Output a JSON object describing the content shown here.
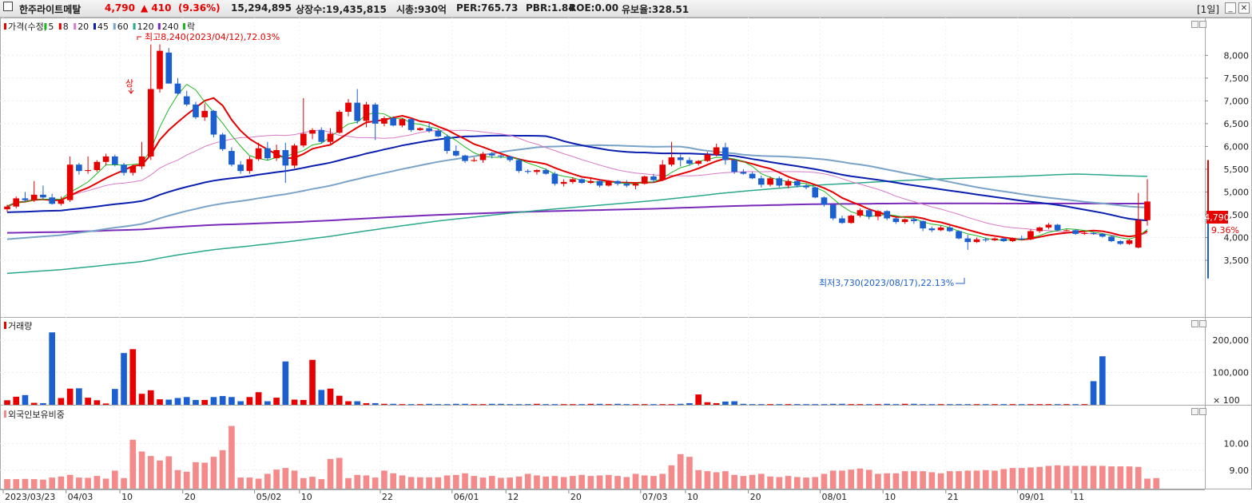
{
  "header": {
    "stock_name": "한주라이트메탈",
    "price": "4,790",
    "change": "▲ 410",
    "change_pct": "(9.36%)",
    "volume": "15,294,895",
    "listed_shares": "상장수:19,435,815",
    "market_cap": "시총:930억",
    "per": "PER:765.73",
    "pbr": "PBR:1.84",
    "roe": "ROE:0.00",
    "float_ratio": "유보율:328.51",
    "period": "[1일]"
  },
  "colors": {
    "up": "#e60000",
    "down": "#1c5fd1",
    "ma5": "#1fb71f",
    "ma8": "#e60000",
    "ma20": "#d77ac8",
    "ma45": "#0a1fb0",
    "ma60": "#7aa3c8",
    "ma120": "#2aa88c",
    "ma240": "#7a2ab8",
    "volume": "#e60000",
    "foreign": "#f58a8a"
  },
  "price_pane": {
    "legend": [
      {
        "label": "가격(수정)",
        "color": "#e60000"
      },
      {
        "label": "5",
        "color": "#1fb71f"
      },
      {
        "label": "8",
        "color": "#e60000"
      },
      {
        "label": "20",
        "color": "#d77ac8"
      },
      {
        "label": "45",
        "color": "#0a1fb0"
      },
      {
        "label": "60",
        "color": "#7aa3c8"
      },
      {
        "label": "120",
        "color": "#2aa88c"
      },
      {
        "label": "240",
        "color": "#7a2ab8"
      },
      {
        "label": "락",
        "color": "#1fb71f"
      }
    ],
    "high_annotation": "최고8,240(2023/04/12),72.03%",
    "low_annotation": "최저3,730(2023/08/17),22.13%",
    "upper_limit_marker": "상",
    "y_ticks": [
      "8,000",
      "7,500",
      "7,000",
      "6,500",
      "6,000",
      "5,500",
      "5,000",
      "4,500",
      "4,000",
      "3,500"
    ],
    "current_price_label": "4,790",
    "current_pct_label": "9.36%"
  },
  "volume_pane": {
    "title": "거래량",
    "y_ticks": [
      "200,000",
      "100,000"
    ],
    "unit": "× 100"
  },
  "foreign_pane": {
    "title": "외국인보유비중",
    "y_ticks": [
      "10.00",
      "9.00"
    ]
  },
  "x_axis": {
    "labels": [
      "2023/03/23",
      "04/03",
      "10",
      "20",
      "05/02",
      "10",
      "22",
      "06/01",
      "12",
      "20",
      "07/03",
      "10",
      "20",
      "08/01",
      "10",
      "21",
      "09/01",
      "11"
    ]
  },
  "chart_data": {
    "type": "candlestick",
    "candles": [
      [
        4620,
        4720,
        4560,
        4680
      ],
      [
        4680,
        4900,
        4640,
        4860
      ],
      [
        4860,
        5000,
        4780,
        4820
      ],
      [
        4820,
        5240,
        4780,
        4940
      ],
      [
        4940,
        5140,
        4840,
        4880
      ],
      [
        4880,
        4960,
        4720,
        4740
      ],
      [
        4740,
        4900,
        4700,
        4820
      ],
      [
        4820,
        5780,
        4780,
        5600
      ],
      [
        5600,
        5640,
        5380,
        5460
      ],
      [
        5460,
        5780,
        5400,
        5480
      ],
      [
        5480,
        5700,
        5440,
        5660
      ],
      [
        5660,
        5840,
        5580,
        5780
      ],
      [
        5780,
        5820,
        5560,
        5600
      ],
      [
        5600,
        5640,
        5360,
        5420
      ],
      [
        5420,
        5600,
        5360,
        5560
      ],
      [
        5560,
        6100,
        5500,
        5780
      ],
      [
        5780,
        8240,
        5700,
        7260
      ],
      [
        7260,
        8240,
        7180,
        8100
      ],
      [
        8060,
        8160,
        7400,
        7380
      ],
      [
        7380,
        7500,
        7140,
        7160
      ],
      [
        7100,
        7220,
        6880,
        6920
      ],
      [
        6920,
        6980,
        6600,
        6640
      ],
      [
        6640,
        6940,
        6560,
        6780
      ],
      [
        6780,
        6800,
        6200,
        6260
      ],
      [
        6260,
        6300,
        5900,
        5940
      ],
      [
        5900,
        5980,
        5560,
        5600
      ],
      [
        5600,
        5680,
        5400,
        5460
      ],
      [
        5460,
        5780,
        5400,
        5720
      ],
      [
        5720,
        6080,
        5680,
        5960
      ],
      [
        5960,
        6100,
        5700,
        5740
      ],
      [
        5740,
        6040,
        5680,
        5920
      ],
      [
        5920,
        6080,
        5200,
        5580
      ],
      [
        5580,
        6060,
        5520,
        6020
      ],
      [
        6020,
        7060,
        5980,
        6280
      ],
      [
        6280,
        6400,
        6160,
        6360
      ],
      [
        6360,
        6420,
        6060,
        6100
      ],
      [
        6100,
        6400,
        6060,
        6280
      ],
      [
        6300,
        6800,
        6280,
        6760
      ],
      [
        6760,
        7040,
        6660,
        6960
      ],
      [
        6960,
        7260,
        6500,
        6560
      ],
      [
        6560,
        6980,
        6420,
        6920
      ],
      [
        6920,
        6960,
        6140,
        6500
      ],
      [
        6500,
        6660,
        6440,
        6620
      ],
      [
        6620,
        6660,
        6440,
        6460
      ],
      [
        6460,
        6620,
        6420,
        6600
      ],
      [
        6600,
        6620,
        6320,
        6360
      ],
      [
        6360,
        6420,
        6340,
        6400
      ],
      [
        6400,
        6520,
        6300,
        6340
      ],
      [
        6340,
        6380,
        6200,
        6220
      ],
      [
        6220,
        6260,
        5840,
        5900
      ],
      [
        5900,
        6020,
        5780,
        5800
      ],
      [
        5800,
        5820,
        5640,
        5680
      ],
      [
        5680,
        5760,
        5660,
        5700
      ],
      [
        5700,
        5880,
        5640,
        5840
      ],
      [
        5840,
        5880,
        5740,
        5800
      ],
      [
        5800,
        5820,
        5740,
        5780
      ],
      [
        5780,
        5800,
        5660,
        5700
      ],
      [
        5700,
        5740,
        5420,
        5460
      ],
      [
        5460,
        5500,
        5400,
        5440
      ],
      [
        5440,
        5500,
        5380,
        5480
      ],
      [
        5480,
        5520,
        5380,
        5400
      ],
      [
        5400,
        5440,
        5140,
        5180
      ],
      [
        5180,
        5280,
        5120,
        5220
      ],
      [
        5220,
        5320,
        5180,
        5280
      ],
      [
        5280,
        5300,
        5180,
        5200
      ],
      [
        5200,
        5300,
        5180,
        5240
      ],
      [
        5240,
        5280,
        5100,
        5140
      ],
      [
        5140,
        5260,
        5120,
        5240
      ],
      [
        5240,
        5260,
        5140,
        5180
      ],
      [
        5180,
        5260,
        5100,
        5140
      ],
      [
        5140,
        5220,
        5060,
        5180
      ],
      [
        5180,
        5360,
        5160,
        5340
      ],
      [
        5340,
        5400,
        5200,
        5260
      ],
      [
        5260,
        5700,
        5240,
        5600
      ],
      [
        5600,
        6100,
        5560,
        5760
      ],
      [
        5760,
        5820,
        5560,
        5700
      ],
      [
        5700,
        5760,
        5580,
        5620
      ],
      [
        5620,
        5700,
        5580,
        5680
      ],
      [
        5680,
        5880,
        5660,
        5820
      ],
      [
        5820,
        6060,
        5780,
        5980
      ],
      [
        5980,
        6080,
        5600,
        5700
      ],
      [
        5700,
        5720,
        5400,
        5440
      ],
      [
        5440,
        5500,
        5380,
        5400
      ],
      [
        5400,
        5440,
        5280,
        5300
      ],
      [
        5300,
        5360,
        5100,
        5160
      ],
      [
        5160,
        5340,
        5120,
        5300
      ],
      [
        5300,
        5340,
        5100,
        5140
      ],
      [
        5140,
        5280,
        5080,
        5240
      ],
      [
        5240,
        5260,
        5100,
        5140
      ],
      [
        5140,
        5180,
        5060,
        5100
      ],
      [
        5100,
        5120,
        4860,
        4880
      ],
      [
        4880,
        4900,
        4680,
        4720
      ],
      [
        4720,
        4740,
        4380,
        4420
      ],
      [
        4420,
        4480,
        4300,
        4320
      ],
      [
        4320,
        4500,
        4300,
        4480
      ],
      [
        4480,
        4640,
        4440,
        4600
      ],
      [
        4600,
        4640,
        4400,
        4460
      ],
      [
        4460,
        4600,
        4380,
        4580
      ],
      [
        4580,
        4600,
        4380,
        4420
      ],
      [
        4420,
        4440,
        4300,
        4340
      ],
      [
        4340,
        4420,
        4300,
        4400
      ],
      [
        4400,
        4440,
        4300,
        4360
      ],
      [
        4360,
        4380,
        4140,
        4200
      ],
      [
        4200,
        4240,
        4120,
        4160
      ],
      [
        4160,
        4260,
        4140,
        4220
      ],
      [
        4220,
        4260,
        4120,
        4140
      ],
      [
        4140,
        4160,
        3960,
        3980
      ],
      [
        3980,
        4060,
        3730,
        3900
      ],
      [
        3900,
        4000,
        3880,
        3960
      ],
      [
        3960,
        4000,
        3900,
        3940
      ],
      [
        3940,
        4000,
        3920,
        3980
      ],
      [
        3980,
        4000,
        3900,
        3920
      ],
      [
        3920,
        4000,
        3900,
        3980
      ],
      [
        3980,
        4040,
        3940,
        3960
      ],
      [
        3960,
        4180,
        3940,
        4140
      ],
      [
        4140,
        4240,
        4100,
        4220
      ],
      [
        4220,
        4320,
        4180,
        4280
      ],
      [
        4280,
        4300,
        4140,
        4160
      ],
      [
        4160,
        4180,
        4140,
        4160
      ],
      [
        4160,
        4180,
        4060,
        4080
      ],
      [
        4080,
        4140,
        4060,
        4100
      ],
      [
        4100,
        4120,
        4060,
        4080
      ],
      [
        4080,
        4100,
        4000,
        4020
      ],
      [
        4020,
        4040,
        3900,
        3920
      ],
      [
        3920,
        3940,
        3840,
        3860
      ],
      [
        3860,
        3960,
        3840,
        3940
      ],
      [
        3780,
        4980,
        3760,
        4380
      ],
      [
        4380,
        5280,
        4260,
        4790
      ]
    ],
    "volume_hundreds": [
      14000,
      25000,
      30000,
      6000,
      5000,
      224000,
      21000,
      50000,
      51000,
      22000,
      14000,
      4000,
      49000,
      160000,
      172000,
      34000,
      45000,
      17000,
      16000,
      21000,
      24000,
      15000,
      15000,
      24000,
      27000,
      24000,
      11000,
      24000,
      39000,
      11000,
      22000,
      134000,
      16000,
      15000,
      139000,
      46000,
      50000,
      28000,
      11000,
      11000,
      5000,
      5000,
      3000,
      3000,
      2000,
      2000,
      2000,
      3000,
      2000,
      2000,
      3000,
      3000,
      2000,
      2000,
      3000,
      3000,
      2000,
      2000,
      2000,
      3000,
      2000,
      2000,
      2000,
      2000,
      2000,
      3000,
      3000,
      2000,
      3000,
      2000,
      2000,
      2000,
      2000,
      2000,
      2000,
      3000,
      5000,
      32000,
      8000,
      5000,
      10000,
      11000,
      3000,
      2000,
      2000,
      2000,
      2000,
      2000,
      2000,
      2000,
      2000,
      2000,
      3000,
      3000,
      2000,
      2000,
      2000,
      2000,
      3000,
      2000,
      3000,
      3000,
      2000,
      2000,
      2000,
      2000,
      2000,
      2000,
      2000,
      2000,
      2000,
      2000,
      2000,
      2000,
      2000,
      2000,
      2000,
      2000,
      2000,
      2000,
      2000,
      73000,
      150000
    ],
    "foreign_pct": [
      8.66,
      8.66,
      8.67,
      8.66,
      8.64,
      8.72,
      8.76,
      8.82,
      8.72,
      8.71,
      8.78,
      8.68,
      8.98,
      8.7,
      10.14,
      9.7,
      9.53,
      9.36,
      9.52,
      9.0,
      8.94,
      9.3,
      9.28,
      9.5,
      9.75,
      10.66,
      8.72,
      8.72,
      8.68,
      8.86,
      9.02,
      9.08,
      8.98,
      8.7,
      8.75,
      8.66,
      9.42,
      9.46,
      8.7,
      8.82,
      8.8,
      8.72,
      8.98,
      8.88,
      8.8,
      8.74,
      8.73,
      8.73,
      8.73,
      8.8,
      8.82,
      8.88,
      8.78,
      8.72,
      8.78,
      8.71,
      8.72,
      8.76,
      8.86,
      8.8,
      8.76,
      8.78,
      8.74,
      8.78,
      8.82,
      8.78,
      8.8,
      8.82,
      8.78,
      8.74,
      8.86,
      8.8,
      8.78,
      8.86,
      9.18,
      9.6,
      9.5,
      9.0,
      8.96,
      8.92,
      8.96,
      8.82,
      8.78,
      8.82,
      8.86,
      8.76,
      8.74,
      8.78,
      8.74,
      8.72,
      8.74,
      8.86,
      8.98,
      8.98,
      9.02,
      9.06,
      9.01,
      8.86,
      8.88,
      8.88,
      8.96,
      8.96,
      8.96,
      8.92,
      8.88,
      8.96,
      8.96,
      8.98,
      8.98,
      9.0,
      8.98,
      9.04,
      9.08,
      9.08,
      9.1,
      9.12,
      9.16,
      9.18,
      9.16,
      9.16,
      9.16,
      9.16,
      9.16,
      9.14,
      9.14,
      9.14,
      9.12,
      8.68,
      8.7
    ]
  }
}
